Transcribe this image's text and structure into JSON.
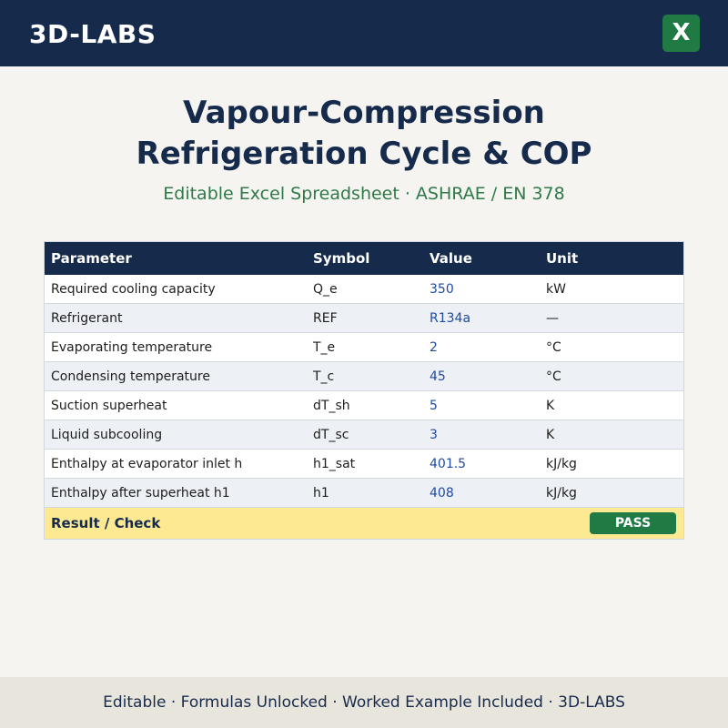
{
  "header": {
    "brand": "3D-LABS",
    "excel_icon_letter": "X"
  },
  "title": {
    "line1": "Vapour-Compression",
    "line2": "Refrigeration Cycle & COP",
    "subtitle": "Editable Excel Spreadsheet  ·  ASHRAE / EN 378"
  },
  "table": {
    "columns": [
      "Parameter",
      "Symbol",
      "Value",
      "Unit"
    ],
    "rows": [
      {
        "parameter": "Required cooling capacity",
        "symbol": "Q_e",
        "value": "350",
        "unit": "kW"
      },
      {
        "parameter": "Refrigerant",
        "symbol": "REF",
        "value": "R134a",
        "unit": "—"
      },
      {
        "parameter": "Evaporating temperature",
        "symbol": "T_e",
        "value": "2",
        "unit": "°C"
      },
      {
        "parameter": "Condensing temperature",
        "symbol": "T_c",
        "value": "45",
        "unit": "°C"
      },
      {
        "parameter": "Suction superheat",
        "symbol": "dT_sh",
        "value": "5",
        "unit": "K"
      },
      {
        "parameter": "Liquid subcooling",
        "symbol": "dT_sc",
        "value": "3",
        "unit": "K"
      },
      {
        "parameter": "Enthalpy at evaporator inlet h",
        "symbol": "h1_sat",
        "value": "401.5",
        "unit": "kJ/kg"
      },
      {
        "parameter": "Enthalpy after superheat h1",
        "symbol": "h1",
        "value": "408",
        "unit": "kJ/kg"
      }
    ],
    "result_label": "Result / Check",
    "result_status": "PASS"
  },
  "footer": {
    "text": "Editable  ·  Formulas Unlocked  ·  Worked Example Included  ·  3D-LABS"
  },
  "colors": {
    "navy": "#162b4b",
    "green": "#1f7a43",
    "value_blue": "#1f4aa0",
    "result_yellow": "#fde992"
  }
}
